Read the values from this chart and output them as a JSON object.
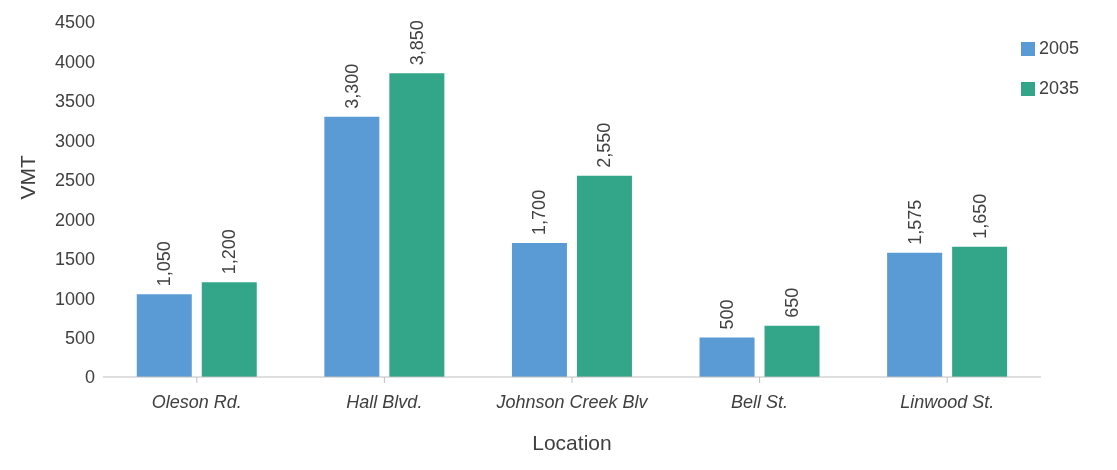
{
  "chart_data": {
    "type": "bar",
    "xlabel": "Location",
    "ylabel": "VMT",
    "categories": [
      "Oleson Rd.",
      "Hall Blvd.",
      "Johnson Creek Blv",
      "Bell St.",
      "Linwood St."
    ],
    "series": [
      {
        "name": "2005",
        "color": "#5b9bd5",
        "values": [
          1050,
          3300,
          1700,
          500,
          1575
        ],
        "value_labels": [
          "1,050",
          "3,300",
          "1,700",
          "500",
          "1,575"
        ]
      },
      {
        "name": "2035",
        "color": "#33a68a",
        "values": [
          1200,
          3850,
          2550,
          650,
          1650
        ],
        "value_labels": [
          "1,200",
          "3,850",
          "2,550",
          "650",
          "1,650"
        ]
      }
    ],
    "ylim": [
      0,
      4500
    ],
    "yticks": [
      0,
      500,
      1000,
      1500,
      2000,
      2500,
      3000,
      3500,
      4000,
      4500
    ],
    "grid": false,
    "legend": "top right"
  }
}
